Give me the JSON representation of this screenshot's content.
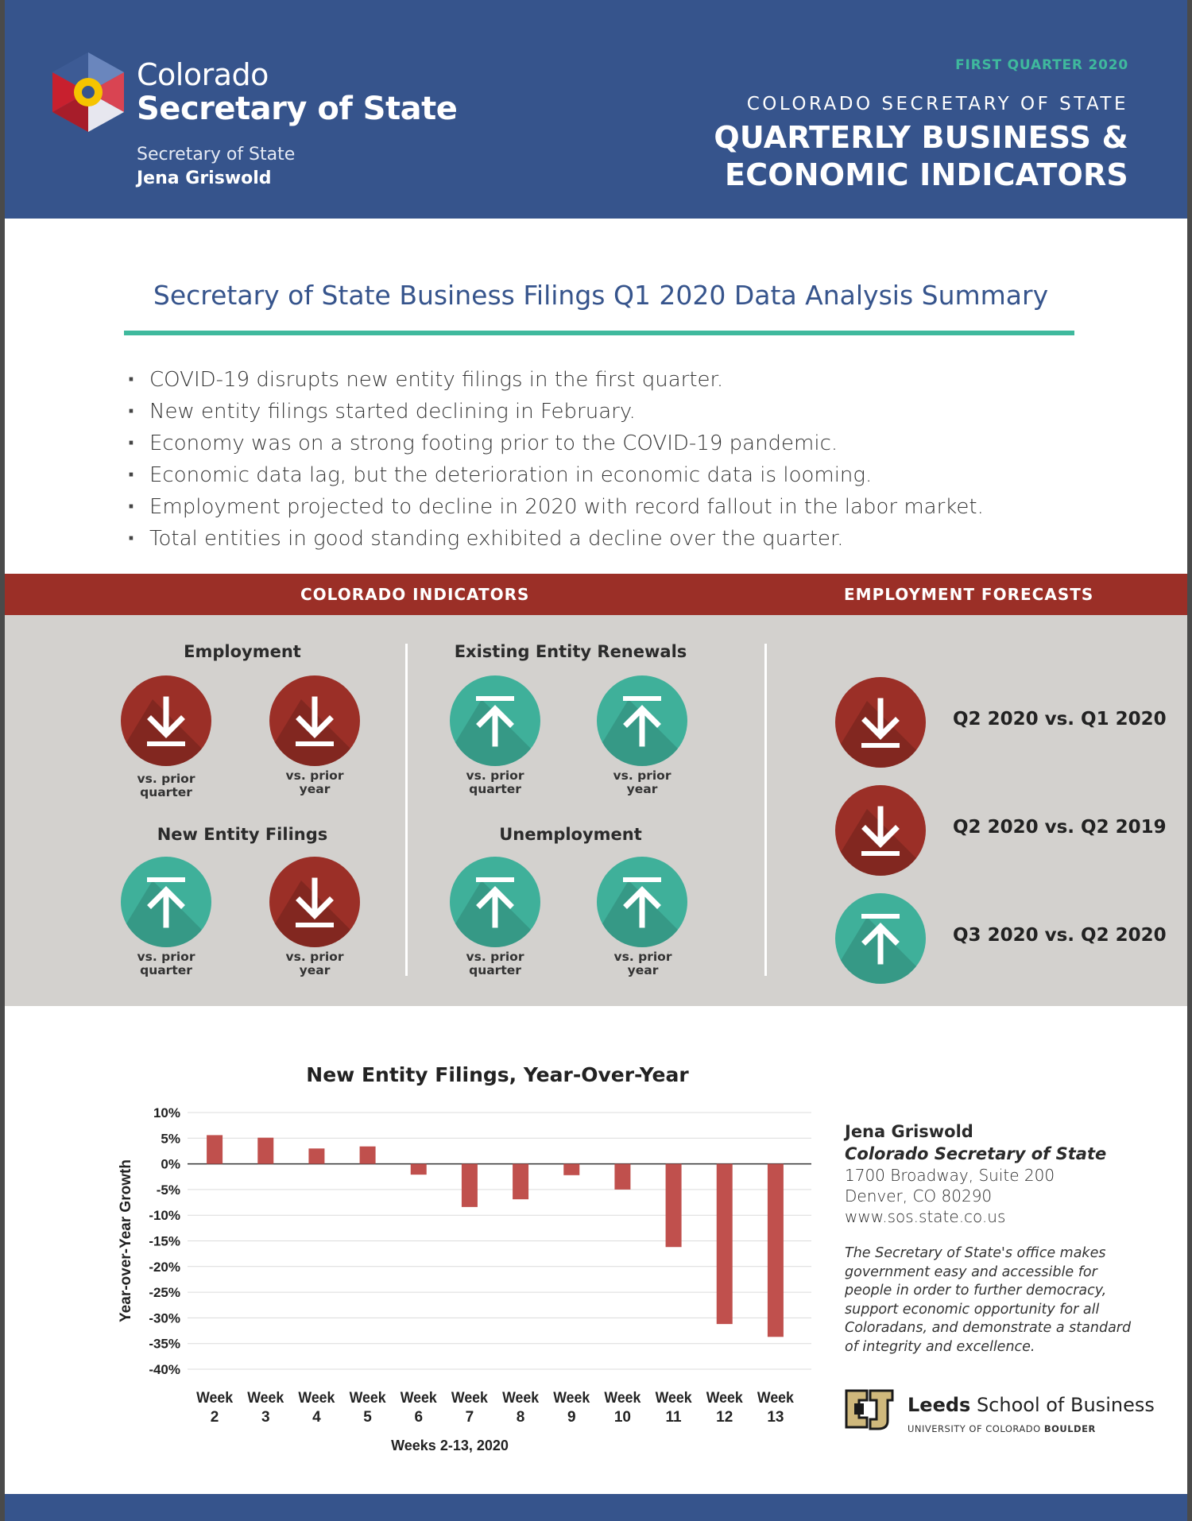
{
  "header": {
    "logo_line1": "Colorado",
    "logo_line2": "Secretary of State",
    "sos_label": "Secretary of State",
    "sos_name": "Jena Griswold",
    "quarter": "FIRST QUARTER 2020",
    "office": "COLORADO SECRETARY OF STATE",
    "title_line1": "QUARTERLY BUSINESS &",
    "title_line2": "ECONOMIC INDICATORS"
  },
  "summary": {
    "title": "Secretary of State Business Filings Q1 2020 Data Analysis Summary",
    "bullets": [
      "COVID-19 disrupts new entity filings in the first quarter.",
      "New entity filings started declining in February.",
      "Economy was on a strong footing prior to the COVID-19 pandemic.",
      "Economic data lag, but the deterioration in economic data is looming.",
      "Employment projected to decline in 2020 with record fallout in the labor market.",
      "Total entities in good standing exhibited a decline over the quarter."
    ]
  },
  "indicators": {
    "band_left": "COLORADO INDICATORS",
    "band_right": "EMPLOYMENT FORECASTS",
    "groups": [
      {
        "title": "Employment",
        "items": [
          {
            "direction": "down",
            "caption1": "vs. prior",
            "caption2": "quarter"
          },
          {
            "direction": "down",
            "caption1": "vs. prior",
            "caption2": "year"
          }
        ]
      },
      {
        "title": "Existing Entity Renewals",
        "items": [
          {
            "direction": "up",
            "caption1": "vs. prior",
            "caption2": "quarter"
          },
          {
            "direction": "up",
            "caption1": "vs. prior",
            "caption2": "year"
          }
        ]
      },
      {
        "title": "New Entity Filings",
        "items": [
          {
            "direction": "up",
            "caption1": "vs. prior",
            "caption2": "quarter"
          },
          {
            "direction": "down",
            "caption1": "vs. prior",
            "caption2": "year"
          }
        ]
      },
      {
        "title": "Unemployment",
        "items": [
          {
            "direction": "up",
            "caption1": "vs. prior",
            "caption2": "quarter"
          },
          {
            "direction": "up",
            "caption1": "vs. prior",
            "caption2": "year"
          }
        ]
      }
    ],
    "forecasts": [
      {
        "direction": "down",
        "label": "Q2 2020 vs. Q1 2020"
      },
      {
        "direction": "down",
        "label": "Q2 2020 vs. Q2 2019"
      },
      {
        "direction": "up",
        "label": "Q3 2020 vs. Q2 2020"
      }
    ]
  },
  "chart_data": {
    "type": "bar",
    "title": "New Entity Filings, Year-Over-Year",
    "xlabel": "Weeks 2-13, 2020",
    "ylabel": "Year-over-Year Growth",
    "categories": [
      "Week 2",
      "Week 3",
      "Week 4",
      "Week 5",
      "Week 6",
      "Week 7",
      "Week 8",
      "Week 9",
      "Week 10",
      "Week 11",
      "Week 12",
      "Week 13"
    ],
    "values": [
      5.6,
      5.1,
      3.0,
      3.4,
      -2.1,
      -8.4,
      -6.9,
      -2.2,
      -5.0,
      -16.2,
      -31.2,
      -33.7
    ],
    "yticks": [
      "10%",
      "5%",
      "0%",
      "-5%",
      "-10%",
      "-15%",
      "-20%",
      "-25%",
      "-30%",
      "-35%",
      "-40%"
    ],
    "ylim": [
      -40,
      10
    ],
    "grid": true,
    "bar_color": "#c0504d"
  },
  "contact": {
    "name": "Jena Griswold",
    "title": "Colorado Secretary of State",
    "address1": "1700 Broadway, Suite 200",
    "address2": "Denver, CO 80290",
    "website": "www.sos.state.co.us",
    "mission": "The Secretary of State's office makes government easy and accessible for people in order to further democracy, support economic opportunity for all Coloradans, and demonstrate a standard of integrity and excellence."
  },
  "leeds": {
    "name_bold": "Leeds",
    "name_rest": " School of Business",
    "sub_plain": "UNIVERSITY OF COLORADO ",
    "sub_bold": "BOULDER"
  },
  "colors": {
    "navy": "#36548c",
    "teal": "#3fb99d",
    "red": "#9b2f27",
    "gray_panel": "#d3d1ce"
  }
}
